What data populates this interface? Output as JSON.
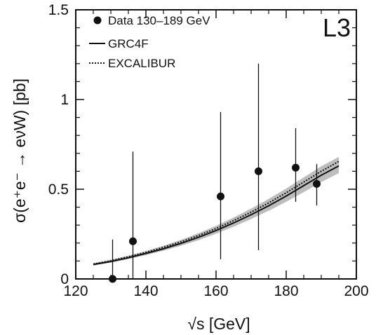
{
  "chart_data": {
    "type": "scatter",
    "xlabel": "√s [GeV]",
    "ylabel": "σ(e⁺e⁻ → eνW)  [pb]",
    "xlim": [
      120,
      200
    ],
    "ylim": [
      0,
      1.5
    ],
    "x_ticks": [
      120,
      140,
      160,
      180,
      200
    ],
    "x_tick_labels": [
      "120",
      "140",
      "160",
      "180",
      "200"
    ],
    "y_ticks": [
      0,
      0.5,
      1,
      1.5
    ],
    "y_tick_labels": [
      "0",
      "0.5",
      "1",
      "1.5"
    ],
    "experiment_label": "L3",
    "legend": {
      "placement": "top-left",
      "entries": [
        {
          "label": "Data 130–189 GeV",
          "style": "marker"
        },
        {
          "label": "GRC4F",
          "style": "solid"
        },
        {
          "label": "EXCALIBUR",
          "style": "dotted"
        }
      ]
    },
    "series": [
      {
        "name": "Data 130–189 GeV",
        "type": "scatter",
        "points": [
          {
            "x": 130.5,
            "y": 0.0,
            "err_low": 0.0,
            "err_high": 0.22
          },
          {
            "x": 136.3,
            "y": 0.21,
            "err_low": 0.21,
            "err_high": 0.5
          },
          {
            "x": 161.3,
            "y": 0.46,
            "err_low": 0.35,
            "err_high": 0.47
          },
          {
            "x": 172.1,
            "y": 0.6,
            "err_low": 0.44,
            "err_high": 0.6
          },
          {
            "x": 182.7,
            "y": 0.62,
            "err_low": 0.19,
            "err_high": 0.22
          },
          {
            "x": 188.7,
            "y": 0.53,
            "err_low": 0.12,
            "err_high": 0.11
          }
        ]
      },
      {
        "name": "GRC4F",
        "type": "line",
        "x": [
          125,
          130,
          135,
          140,
          145,
          150,
          155,
          160,
          165,
          170,
          175,
          180,
          185,
          190,
          195
        ],
        "y": [
          0.08,
          0.097,
          0.118,
          0.142,
          0.168,
          0.198,
          0.232,
          0.27,
          0.312,
          0.358,
          0.408,
          0.462,
          0.52,
          0.578,
          0.63
        ]
      },
      {
        "name": "EXCALIBUR",
        "type": "line",
        "x": [
          125,
          130,
          135,
          140,
          145,
          150,
          155,
          160,
          165,
          170,
          175,
          180,
          185,
          190,
          195
        ],
        "y": [
          0.083,
          0.101,
          0.123,
          0.148,
          0.176,
          0.207,
          0.242,
          0.281,
          0.325,
          0.372,
          0.424,
          0.48,
          0.54,
          0.6,
          0.655
        ]
      },
      {
        "name": "",
        "type": "band",
        "x": [
          125,
          130,
          135,
          140,
          145,
          150,
          155,
          160,
          165,
          170,
          175,
          180,
          185,
          190,
          195
        ],
        "lower": [
          0.075,
          0.091,
          0.11,
          0.133,
          0.157,
          0.185,
          0.216,
          0.252,
          0.291,
          0.334,
          0.38,
          0.43,
          0.484,
          0.54,
          0.59
        ],
        "upper": [
          0.088,
          0.107,
          0.13,
          0.156,
          0.185,
          0.218,
          0.255,
          0.296,
          0.342,
          0.392,
          0.446,
          0.504,
          0.566,
          0.628,
          0.68
        ]
      }
    ],
    "grid": false,
    "colors": {
      "band": "#bdbdbd",
      "ink": "#111111"
    }
  }
}
